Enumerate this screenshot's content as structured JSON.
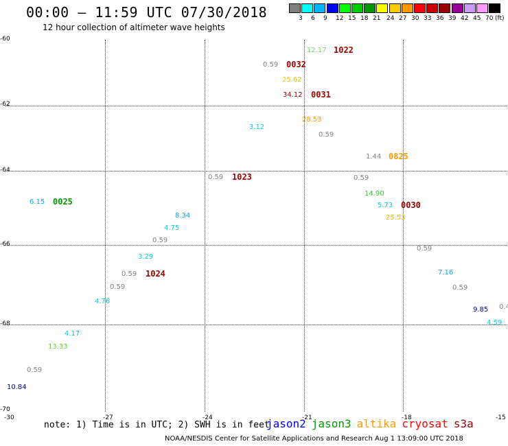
{
  "header": {
    "title": "00:00 – 11:59 UTC 07/30/2018",
    "subtitle": "12 hour collection of altimeter wave heights"
  },
  "legend": {
    "colors": [
      "#808080",
      "#00ffff",
      "#00b4ff",
      "#0000ff",
      "#00ff00",
      "#00cc00",
      "#009900",
      "#ffff00",
      "#ffcc00",
      "#ff9900",
      "#ff0000",
      "#cc0000",
      "#990000",
      "#990099",
      "#cc99ff",
      "#ff99ff",
      "#000000"
    ],
    "ticks": [
      "3",
      "6",
      "9",
      "12",
      "15",
      "18",
      "21",
      "24",
      "27",
      "30",
      "33",
      "36",
      "39",
      "42",
      "45",
      "70",
      "(ft)"
    ]
  },
  "axes": {
    "lat_labels": [
      "-60",
      "-62",
      "-64",
      "-66",
      "-68",
      "-70"
    ],
    "lon_labels": [
      "-30",
      "-27",
      "-24",
      "-21",
      "-18",
      "-15"
    ]
  },
  "observations": [
    {
      "text": "12.17",
      "color": "#66dd66"
    },
    {
      "text": "0.59",
      "color": "#808080"
    },
    {
      "text": "25.62",
      "color": "#e6c000"
    },
    {
      "text": "34.12",
      "color": "#990000"
    },
    {
      "text": "3.12",
      "color": "#00cccc"
    },
    {
      "text": "28.53",
      "color": "#ff9900"
    },
    {
      "text": "0.59",
      "color": "#808080"
    },
    {
      "text": "1.44",
      "color": "#808080"
    },
    {
      "text": "0.59",
      "color": "#808080"
    },
    {
      "text": "0.59",
      "color": "#808080"
    },
    {
      "text": "14.90",
      "color": "#33cc33"
    },
    {
      "text": "5.73",
      "color": "#00cccc"
    },
    {
      "text": "25.53",
      "color": "#e6c000"
    },
    {
      "text": "6.15",
      "color": "#00aadd"
    },
    {
      "text": "8.34",
      "color": "#00aadd"
    },
    {
      "text": "4.75",
      "color": "#00cccc"
    },
    {
      "text": "0.59",
      "color": "#808080"
    },
    {
      "text": "3.29",
      "color": "#00cccc"
    },
    {
      "text": "0.59",
      "color": "#808080"
    },
    {
      "text": "0.59",
      "color": "#808080"
    },
    {
      "text": "4.76",
      "color": "#00cccc"
    },
    {
      "text": "0.59",
      "color": "#808080"
    },
    {
      "text": "7.16",
      "color": "#00aadd"
    },
    {
      "text": "0.59",
      "color": "#808080"
    },
    {
      "text": "9.85",
      "color": "#0000aa"
    },
    {
      "text": "0.4",
      "color": "#808080"
    },
    {
      "text": "4.59",
      "color": "#00cccc"
    },
    {
      "text": "4.17",
      "color": "#00cccc"
    },
    {
      "text": "13.33",
      "color": "#66cc33"
    },
    {
      "text": "0.59",
      "color": "#808080"
    },
    {
      "text": "10.84",
      "color": "#0000aa"
    }
  ],
  "times": [
    {
      "text": "1022",
      "color": "#990000"
    },
    {
      "text": "0032",
      "color": "#990000"
    },
    {
      "text": "0031",
      "color": "#990000"
    },
    {
      "text": "0825",
      "color": "#ff9900"
    },
    {
      "text": "1023",
      "color": "#990000"
    },
    {
      "text": "0030",
      "color": "#990000"
    },
    {
      "text": "0025",
      "color": "#009900"
    },
    {
      "text": "1024",
      "color": "#990000"
    }
  ],
  "footer": {
    "note": "note: 1) Time is in UTC; 2) SWH is in feet",
    "credit": "NOAA/NESDIS Center for Satellite Applications and Research    Aug  1 13:09:00 UTC 2018",
    "missions": [
      {
        "name": "jason2",
        "color": "#0000ff"
      },
      {
        "name": "jason3",
        "color": "#009900"
      },
      {
        "name": "altika",
        "color": "#ff9900"
      },
      {
        "name": "cryosat",
        "color": "#ff0000"
      },
      {
        "name": "s3a",
        "color": "#990000"
      }
    ]
  }
}
